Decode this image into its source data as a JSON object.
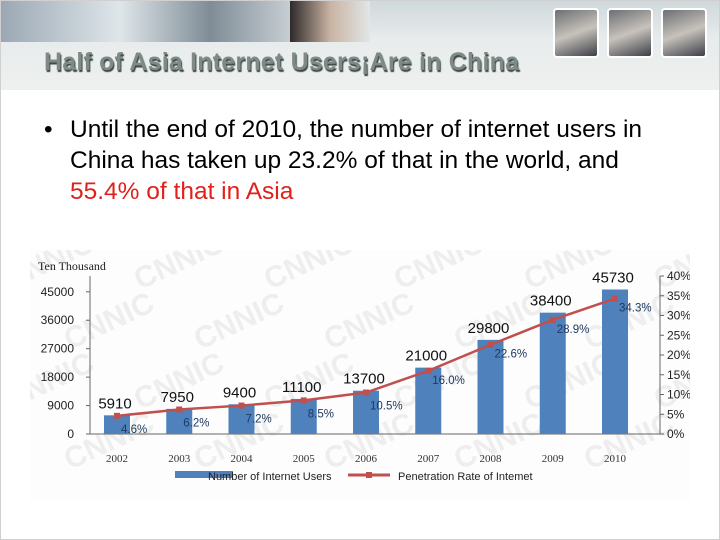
{
  "slide": {
    "title": "Half of Asia Internet Users¡Are in China",
    "bullet": {
      "text": "Until the end of 2010, the number of internet users in China has taken up 23.2% of that in the world, and ",
      "highlight": "55.4% of that in Asia",
      "highlight_color": "#e0201b"
    }
  },
  "chart_data": {
    "type": "bar",
    "ylabel": "Ten Thousand",
    "categories": [
      "2002",
      "2003",
      "2004",
      "2005",
      "2006",
      "2007",
      "2008",
      "2009",
      "2010"
    ],
    "series": [
      {
        "name": "Number of Internet Users",
        "type": "bar",
        "axis": "left",
        "color": "#4f81bd",
        "values": [
          5910,
          7950,
          9400,
          11100,
          13700,
          21000,
          29800,
          38400,
          45730
        ],
        "labels": [
          "5910",
          "7950",
          "9400",
          "11100",
          "13700",
          "21000",
          "29800",
          "38400",
          "45730"
        ]
      },
      {
        "name": "Penetration Rate of Internet",
        "type": "line",
        "axis": "right",
        "color": "#c0504d",
        "values": [
          4.6,
          6.2,
          7.2,
          8.5,
          10.5,
          16.0,
          22.6,
          28.9,
          34.3
        ],
        "labels": [
          "4.6%",
          "6.2%",
          "7.2%",
          "8.5%",
          "10.5%",
          "16.0%",
          "22.6%",
          "28.9%",
          "34.3%"
        ]
      }
    ],
    "legend_labels": [
      "Number of Internet Users",
      "Penetration Rate of Intemet"
    ],
    "left_axis": {
      "ylim": [
        0,
        50000
      ],
      "ticks": [
        "0",
        "9000",
        "18000",
        "27000",
        "36000",
        "45000"
      ]
    },
    "right_axis": {
      "ylim": [
        0,
        40
      ],
      "ticks": [
        "0%",
        "5%",
        "10%",
        "15%",
        "20%",
        "25%",
        "30%",
        "35%",
        "40%"
      ]
    },
    "legend_position": "bottom",
    "watermark": "CNNIC"
  }
}
